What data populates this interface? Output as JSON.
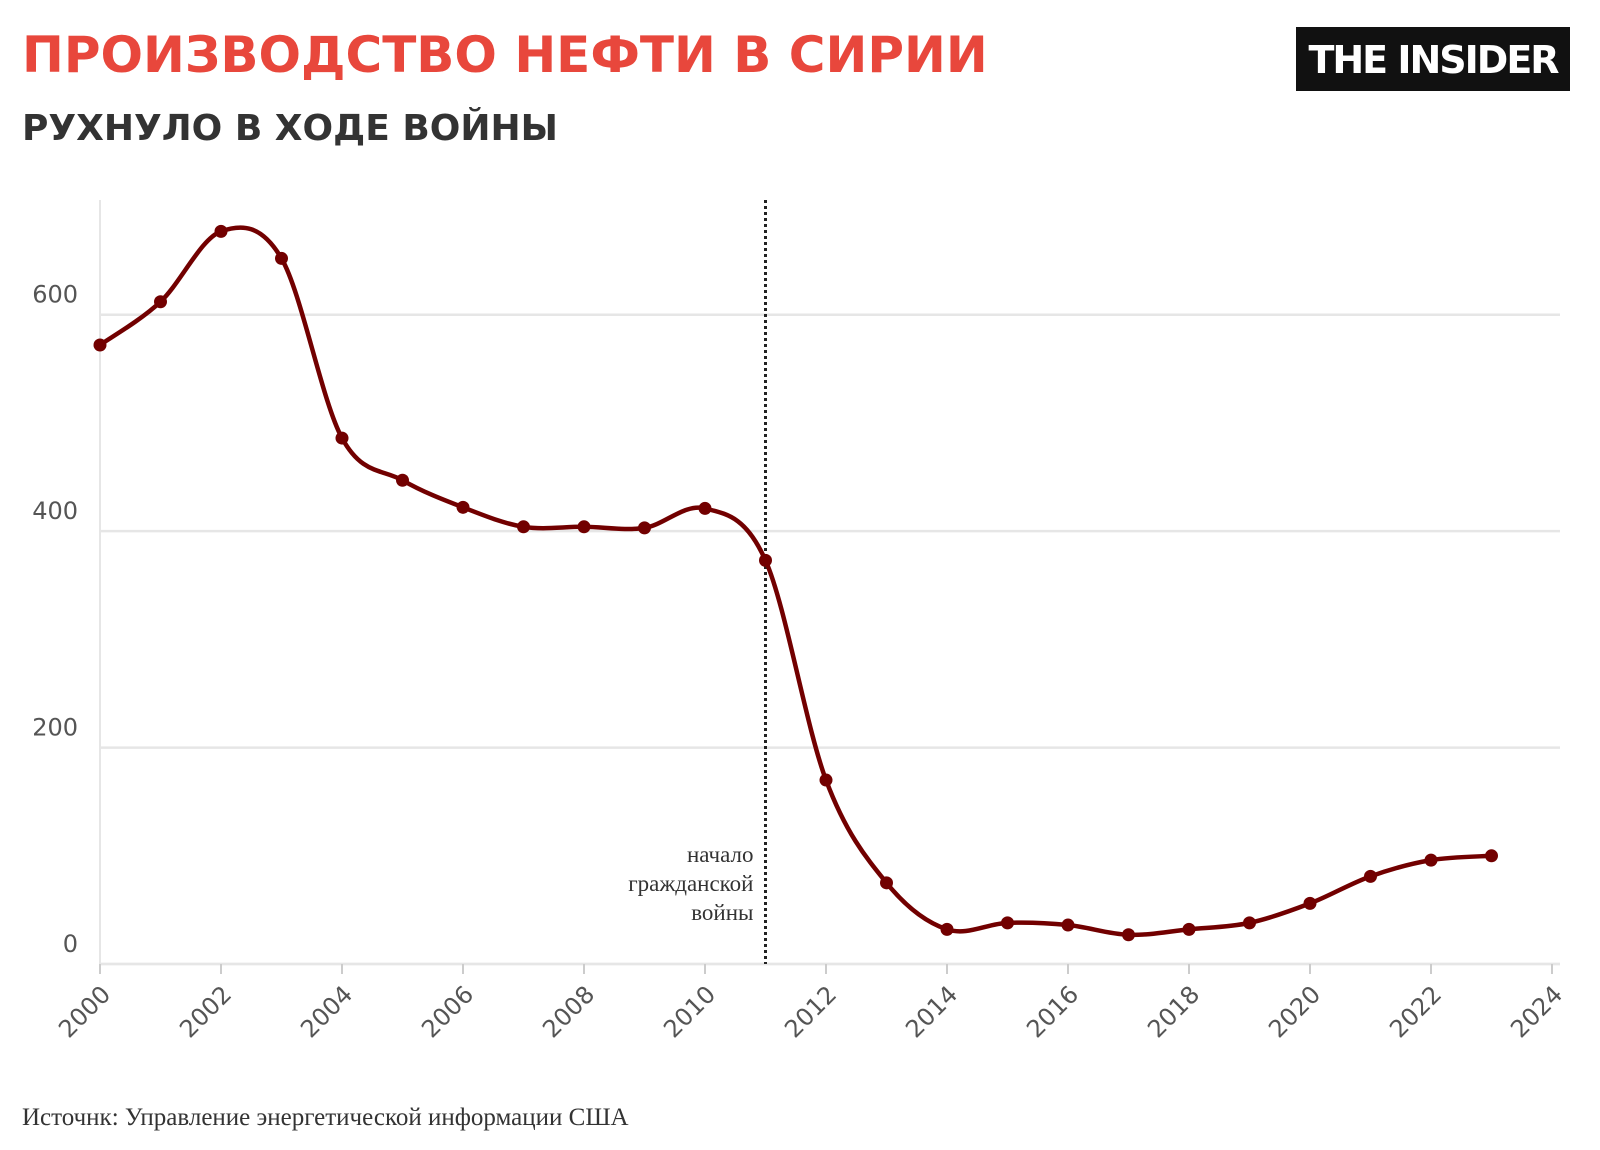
{
  "chart_data": {
    "type": "line",
    "title": "ПРОИЗВОДСТВО НЕФТИ В СИРИИ",
    "subtitle": "РУХНУЛО В ХОДЕ ВОЙНЫ",
    "logo": "THE INSIDER",
    "source": "Источнк: Управление энергетической информации США",
    "x": [
      2000,
      2001,
      2002,
      2003,
      2004,
      2005,
      2006,
      2007,
      2008,
      2009,
      2010,
      2011,
      2012,
      2013,
      2014,
      2015,
      2016,
      2017,
      2018,
      2019,
      2020,
      2021,
      2022,
      2023
    ],
    "series": [
      {
        "name": "Производство нефти",
        "color": "#720000",
        "values": [
          572,
          612,
          677,
          652,
          486,
          447,
          422,
          404,
          404,
          403,
          421,
          373,
          170,
          75,
          32,
          38,
          36,
          27,
          32,
          38,
          56,
          81,
          96,
          100
        ]
      }
    ],
    "xlim": [
      2000,
      2024
    ],
    "xticks": [
      2000,
      2002,
      2004,
      2006,
      2008,
      2010,
      2012,
      2014,
      2016,
      2018,
      2020,
      2022,
      2024
    ],
    "ylim": [
      0,
      706
    ],
    "yticks": [
      0,
      200,
      400,
      600
    ],
    "grid": true,
    "annotation": {
      "x": 2011,
      "lines": [
        "начало",
        "гражданской",
        "войны"
      ]
    }
  }
}
